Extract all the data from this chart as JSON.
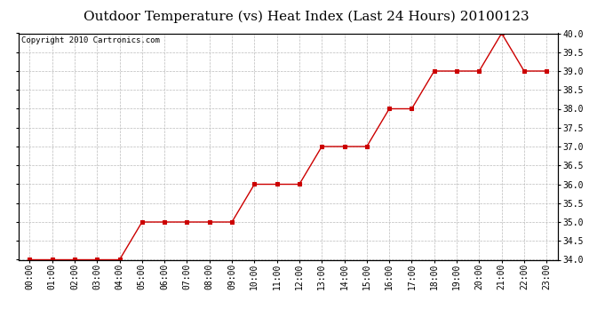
{
  "title": "Outdoor Temperature (vs) Heat Index (Last 24 Hours) 20100123",
  "copyright_text": "Copyright 2010 Cartronics.com",
  "x_labels": [
    "00:00",
    "01:00",
    "02:00",
    "03:00",
    "04:00",
    "05:00",
    "06:00",
    "07:00",
    "08:00",
    "09:00",
    "10:00",
    "11:00",
    "12:00",
    "13:00",
    "14:00",
    "15:00",
    "16:00",
    "17:00",
    "18:00",
    "19:00",
    "20:00",
    "21:00",
    "22:00",
    "23:00"
  ],
  "y_values": [
    34.0,
    34.0,
    34.0,
    34.0,
    34.0,
    35.0,
    35.0,
    35.0,
    35.0,
    35.0,
    36.0,
    36.0,
    36.0,
    37.0,
    37.0,
    37.0,
    38.0,
    38.0,
    39.0,
    39.0,
    39.0,
    40.0,
    39.0,
    39.0
  ],
  "line_color": "#cc0000",
  "marker_color": "#cc0000",
  "background_color": "#ffffff",
  "grid_color": "#bbbbbb",
  "ylim_min": 34.0,
  "ylim_max": 40.0,
  "ytick_step": 0.5,
  "title_fontsize": 11,
  "axis_label_fontsize": 7,
  "copyright_fontsize": 6.5
}
